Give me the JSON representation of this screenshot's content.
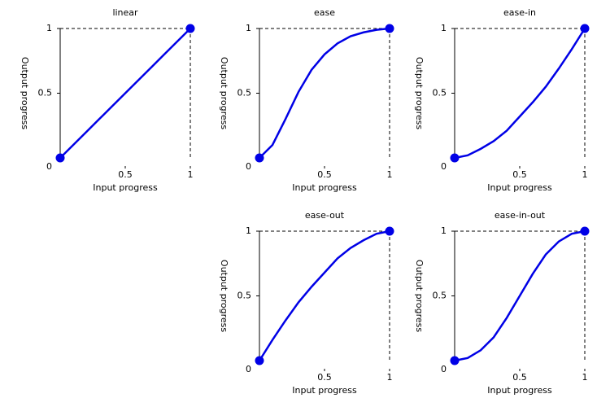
{
  "chart_data": [
    {
      "type": "line",
      "title": "linear",
      "xlabel": "Input progress",
      "ylabel": "Output progress",
      "x": [
        0,
        0.1,
        0.2,
        0.3,
        0.4,
        0.5,
        0.6,
        0.7,
        0.8,
        0.9,
        1
      ],
      "series": [
        {
          "color": "#0000e6",
          "values": [
            0,
            0.1,
            0.2,
            0.3,
            0.4,
            0.5,
            0.6,
            0.7,
            0.8,
            0.9,
            1
          ]
        }
      ],
      "xlim": [
        0,
        1
      ],
      "ylim": [
        0,
        1
      ],
      "xticks": [
        0.5,
        1
      ],
      "yticks": [
        0,
        0.5,
        1
      ]
    },
    {
      "type": "line",
      "title": "ease",
      "xlabel": "Input progress",
      "ylabel": "Output progress",
      "x": [
        0,
        0.1,
        0.2,
        0.3,
        0.4,
        0.5,
        0.6,
        0.7,
        0.8,
        0.9,
        1
      ],
      "series": [
        {
          "color": "#0000e6",
          "values": [
            0,
            0.1,
            0.3,
            0.51,
            0.68,
            0.8,
            0.885,
            0.94,
            0.97,
            0.99,
            1
          ]
        }
      ],
      "xlim": [
        0,
        1
      ],
      "ylim": [
        0,
        1
      ],
      "xticks": [
        0.5,
        1
      ],
      "yticks": [
        0,
        0.5,
        1
      ]
    },
    {
      "type": "line",
      "title": "ease-in",
      "xlabel": "Input progress",
      "ylabel": "Output progress",
      "x": [
        0,
        0.1,
        0.2,
        0.3,
        0.4,
        0.5,
        0.6,
        0.7,
        0.8,
        0.9,
        1
      ],
      "series": [
        {
          "color": "#0000e6",
          "values": [
            0,
            0.02,
            0.07,
            0.13,
            0.21,
            0.32,
            0.43,
            0.55,
            0.69,
            0.84,
            1
          ]
        }
      ],
      "xlim": [
        0,
        1
      ],
      "ylim": [
        0,
        1
      ],
      "xticks": [
        0.5,
        1
      ],
      "yticks": [
        0,
        0.5,
        1
      ]
    },
    {
      "type": "line",
      "title": "ease-out",
      "xlabel": "Input progress",
      "ylabel": "Output progress",
      "x": [
        0,
        0.1,
        0.2,
        0.3,
        0.4,
        0.5,
        0.6,
        0.7,
        0.8,
        0.9,
        1
      ],
      "series": [
        {
          "color": "#0000e6",
          "values": [
            0,
            0.16,
            0.31,
            0.45,
            0.57,
            0.68,
            0.79,
            0.87,
            0.93,
            0.98,
            1
          ]
        }
      ],
      "xlim": [
        0,
        1
      ],
      "ylim": [
        0,
        1
      ],
      "xticks": [
        0.5,
        1
      ],
      "yticks": [
        0,
        0.5,
        1
      ]
    },
    {
      "type": "line",
      "title": "ease-in-out",
      "xlabel": "Input progress",
      "ylabel": "Output progress",
      "x": [
        0,
        0.1,
        0.2,
        0.3,
        0.4,
        0.5,
        0.6,
        0.7,
        0.8,
        0.9,
        1
      ],
      "series": [
        {
          "color": "#0000e6",
          "values": [
            0,
            0.02,
            0.08,
            0.18,
            0.33,
            0.5,
            0.67,
            0.82,
            0.92,
            0.98,
            1
          ]
        }
      ],
      "xlim": [
        0,
        1
      ],
      "ylim": [
        0,
        1
      ],
      "xticks": [
        0.5,
        1
      ],
      "yticks": [
        0,
        0.5,
        1
      ]
    }
  ]
}
